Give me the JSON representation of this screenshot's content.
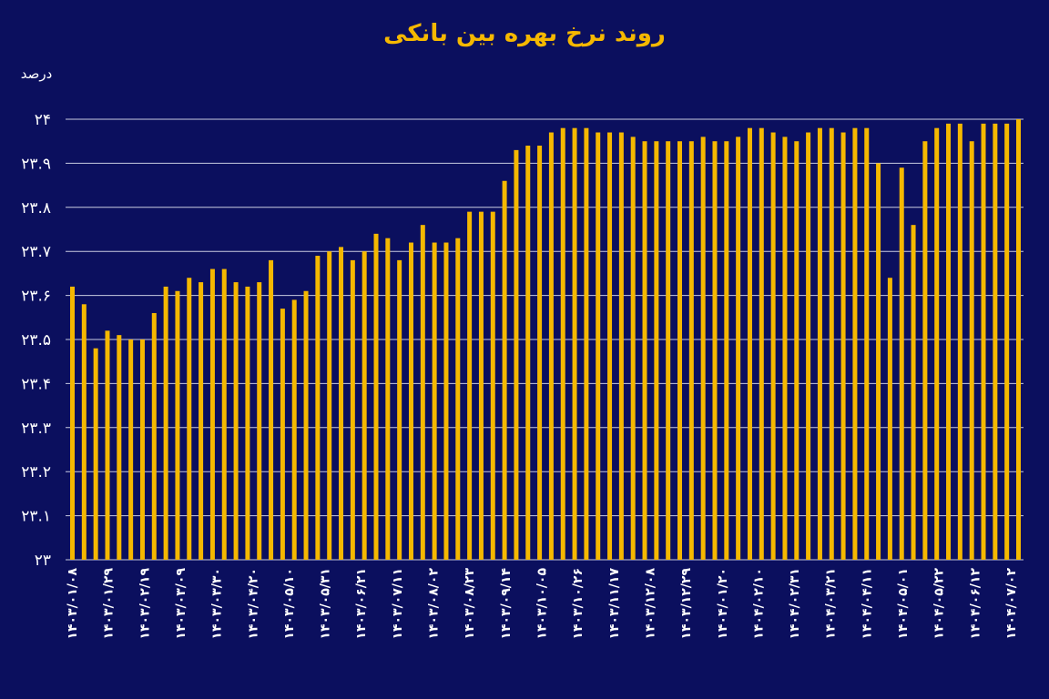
{
  "chart_data": {
    "type": "bar",
    "title": "روند نرخ بهره بین بانکی",
    "ylabel": "درصد",
    "ylim": [
      23,
      24
    ],
    "yticks": [
      "۲۳",
      "۲۳.۱",
      "۲۳.۲",
      "۲۳.۳",
      "۲۳.۴",
      "۲۳.۵",
      "۲۳.۶",
      "۲۳.۷",
      "۲۳.۸",
      "۲۳.۹",
      "۲۴"
    ],
    "grid": true,
    "bar_color": "#f5b800",
    "background": "#0b0f5e",
    "xtick_labels": [
      "۱۴۰۳/۰۱/۰۸",
      "۱۴۰۳/۰۱/۲۹",
      "۱۴۰۳/۰۲/۱۹",
      "۱۴۰۳/۰۳/۰۹",
      "۱۴۰۳/۰۳/۳۰",
      "۱۴۰۳/۰۴/۲۰",
      "۱۴۰۳/۰۵/۱۰",
      "۱۴۰۳/۰۵/۳۱",
      "۱۴۰۳/۰۶/۲۱",
      "۱۴۰۳/۰۷/۱۱",
      "۱۴۰۳/۰۸/۰۲",
      "۱۴۰۳/۰۸/۲۳",
      "۱۴۰۳/۰۹/۱۴",
      "۱۴۰۳/۱۰/۰۵",
      "۱۴۰۳/۱۰/۲۶",
      "۱۴۰۳/۱۱/۱۷",
      "۱۴۰۳/۱۲/۰۸",
      "۱۴۰۳/۱۲/۲۹",
      "۱۴۰۴/۰۱/۲۰",
      "۱۴۰۴/۰۲/۱۰",
      "۱۴۰۴/۰۲/۳۱",
      "۱۴۰۴/۰۳/۲۱",
      "۱۴۰۴/۰۴/۱۱",
      "۱۴۰۴/۰۵/۰۱",
      "۱۴۰۴/۰۵/۲۲",
      "۱۴۰۴/۰۶/۱۲",
      "۱۴۰۴/۰۷/۰۲"
    ],
    "values": [
      23.62,
      23.58,
      23.48,
      23.52,
      23.51,
      23.5,
      23.5,
      23.56,
      23.62,
      23.61,
      23.64,
      23.63,
      23.66,
      23.66,
      23.63,
      23.62,
      23.63,
      23.68,
      23.57,
      23.59,
      23.61,
      23.69,
      23.7,
      23.71,
      23.68,
      23.7,
      23.74,
      23.73,
      23.68,
      23.72,
      23.76,
      23.72,
      23.72,
      23.73,
      23.79,
      23.79,
      23.79,
      23.86,
      23.93,
      23.94,
      23.94,
      23.97,
      23.98,
      23.98,
      23.98,
      23.97,
      23.97,
      23.97,
      23.96,
      23.95,
      23.95,
      23.95,
      23.95,
      23.95,
      23.96,
      23.95,
      23.95,
      23.96,
      23.98,
      23.98,
      23.97,
      23.96,
      23.95,
      23.97,
      23.98,
      23.98,
      23.97,
      23.98,
      23.98,
      23.9,
      23.64,
      23.89,
      23.76,
      23.95,
      23.98,
      23.99,
      23.99,
      23.95,
      23.99,
      23.99,
      23.99,
      24.0
    ]
  }
}
